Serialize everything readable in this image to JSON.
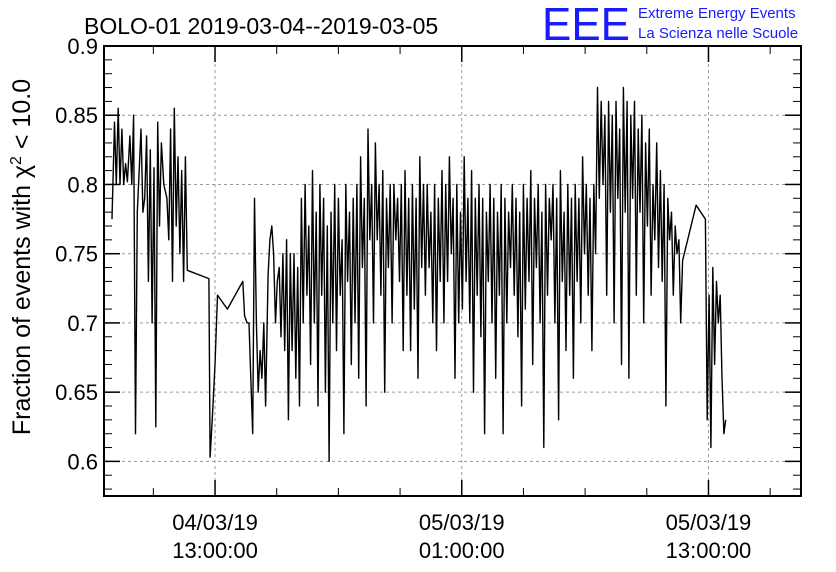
{
  "chart_data": {
    "type": "line",
    "title": "BOLO-01 2019-03-04--2019-03-05",
    "ylabel": "Fraction of events with χ² < 10.0",
    "xlabel": "",
    "ylim": [
      0.575,
      0.9
    ],
    "xlim": [
      -1.8,
      9.5
    ],
    "yticks": [
      0.6,
      0.65,
      0.7,
      0.75,
      0.8,
      0.85,
      0.9
    ],
    "ytick_labels": [
      "0.6",
      "0.65",
      "0.7",
      "0.75",
      "0.8",
      "0.85",
      "0.9"
    ],
    "xticks": [
      {
        "value": 0,
        "date": "04/03/19",
        "time": "13:00:00"
      },
      {
        "value": 4,
        "date": "05/03/19",
        "time": "01:00:00"
      },
      {
        "value": 8,
        "date": "05/03/19",
        "time": "13:00:00"
      }
    ],
    "grid": true,
    "line_color": "#000000",
    "series": [
      {
        "values": [
          [
            -1.67,
            0.775
          ],
          [
            -1.63,
            0.845
          ],
          [
            -1.6,
            0.8
          ],
          [
            -1.57,
            0.855
          ],
          [
            -1.54,
            0.8
          ],
          [
            -1.51,
            0.84
          ],
          [
            -1.48,
            0.8
          ],
          [
            -1.45,
            0.815
          ],
          [
            -1.42,
            0.802
          ],
          [
            -1.38,
            0.835
          ],
          [
            -1.35,
            0.8
          ],
          [
            -1.32,
            0.85
          ],
          [
            -1.29,
            0.62
          ],
          [
            -1.26,
            0.78
          ],
          [
            -1.23,
            0.81
          ],
          [
            -1.2,
            0.84
          ],
          [
            -1.17,
            0.78
          ],
          [
            -1.14,
            0.79
          ],
          [
            -1.11,
            0.835
          ],
          [
            -1.08,
            0.73
          ],
          [
            -1.05,
            0.825
          ],
          [
            -1.02,
            0.7
          ],
          [
            -0.99,
            0.812
          ],
          [
            -0.96,
            0.625
          ],
          [
            -0.93,
            0.845
          ],
          [
            -0.9,
            0.77
          ],
          [
            -0.87,
            0.83
          ],
          [
            -0.83,
            0.8
          ],
          [
            -0.78,
            0.79
          ],
          [
            -0.75,
            0.76
          ],
          [
            -0.72,
            0.84
          ],
          [
            -0.69,
            0.73
          ],
          [
            -0.66,
            0.855
          ],
          [
            -0.63,
            0.77
          ],
          [
            -0.6,
            0.82
          ],
          [
            -0.57,
            0.75
          ],
          [
            -0.54,
            0.81
          ],
          [
            -0.51,
            0.73
          ],
          [
            -0.48,
            0.82
          ],
          [
            -0.45,
            0.738
          ],
          [
            -0.1,
            0.732
          ],
          [
            -0.08,
            0.603
          ],
          [
            -0.04,
            0.635
          ],
          [
            0.0,
            0.67
          ],
          [
            0.04,
            0.72
          ],
          [
            0.2,
            0.71
          ],
          [
            0.45,
            0.73
          ],
          [
            0.48,
            0.705
          ],
          [
            0.52,
            0.7
          ],
          [
            0.55,
            0.7
          ],
          [
            0.58,
            0.66
          ],
          [
            0.61,
            0.62
          ],
          [
            0.64,
            0.79
          ],
          [
            0.67,
            0.7
          ],
          [
            0.7,
            0.65
          ],
          [
            0.73,
            0.68
          ],
          [
            0.76,
            0.66
          ],
          [
            0.79,
            0.7
          ],
          [
            0.82,
            0.64
          ],
          [
            0.86,
            0.735
          ],
          [
            0.89,
            0.76
          ],
          [
            0.92,
            0.77
          ],
          [
            0.95,
            0.75
          ],
          [
            0.98,
            0.7
          ],
          [
            1.01,
            0.73
          ],
          [
            1.04,
            0.74
          ],
          [
            1.07,
            0.69
          ],
          [
            1.1,
            0.75
          ],
          [
            1.13,
            0.68
          ],
          [
            1.16,
            0.76
          ],
          [
            1.19,
            0.63
          ],
          [
            1.22,
            0.75
          ],
          [
            1.25,
            0.68
          ],
          [
            1.28,
            0.75
          ],
          [
            1.31,
            0.66
          ],
          [
            1.34,
            0.74
          ],
          [
            1.37,
            0.64
          ],
          [
            1.4,
            0.79
          ],
          [
            1.43,
            0.7
          ],
          [
            1.46,
            0.8
          ],
          [
            1.49,
            0.72
          ],
          [
            1.52,
            0.77
          ],
          [
            1.55,
            0.67
          ],
          [
            1.58,
            0.81
          ],
          [
            1.61,
            0.7
          ],
          [
            1.64,
            0.78
          ],
          [
            1.67,
            0.64
          ],
          [
            1.7,
            0.8
          ],
          [
            1.73,
            0.72
          ],
          [
            1.76,
            0.79
          ],
          [
            1.79,
            0.65
          ],
          [
            1.82,
            0.77
          ],
          [
            1.85,
            0.6
          ],
          [
            1.88,
            0.78
          ],
          [
            1.91,
            0.7
          ],
          [
            1.94,
            0.8
          ],
          [
            1.97,
            0.68
          ],
          [
            2.0,
            0.79
          ],
          [
            2.03,
            0.72
          ],
          [
            2.06,
            0.76
          ],
          [
            2.09,
            0.62
          ],
          [
            2.12,
            0.8
          ],
          [
            2.15,
            0.73
          ],
          [
            2.18,
            0.78
          ],
          [
            2.21,
            0.67
          ],
          [
            2.24,
            0.79
          ],
          [
            2.27,
            0.7
          ],
          [
            2.3,
            0.8
          ],
          [
            2.33,
            0.66
          ],
          [
            2.36,
            0.82
          ],
          [
            2.39,
            0.74
          ],
          [
            2.42,
            0.79
          ],
          [
            2.45,
            0.64
          ],
          [
            2.48,
            0.84
          ],
          [
            2.51,
            0.76
          ],
          [
            2.54,
            0.8
          ],
          [
            2.57,
            0.7
          ],
          [
            2.6,
            0.83
          ],
          [
            2.63,
            0.76
          ],
          [
            2.66,
            0.8
          ],
          [
            2.69,
            0.72
          ],
          [
            2.72,
            0.81
          ],
          [
            2.75,
            0.65
          ],
          [
            2.78,
            0.79
          ],
          [
            2.81,
            0.74
          ],
          [
            2.84,
            0.8
          ],
          [
            2.87,
            0.7
          ],
          [
            2.9,
            0.8
          ],
          [
            2.93,
            0.76
          ],
          [
            2.96,
            0.79
          ],
          [
            2.99,
            0.73
          ],
          [
            3.02,
            0.8
          ],
          [
            3.05,
            0.68
          ],
          [
            3.08,
            0.81
          ],
          [
            3.11,
            0.72
          ],
          [
            3.14,
            0.79
          ],
          [
            3.17,
            0.68
          ],
          [
            3.2,
            0.8
          ],
          [
            3.23,
            0.71
          ],
          [
            3.26,
            0.79
          ],
          [
            3.29,
            0.66
          ],
          [
            3.32,
            0.82
          ],
          [
            3.35,
            0.74
          ],
          [
            3.38,
            0.8
          ],
          [
            3.41,
            0.72
          ],
          [
            3.44,
            0.8
          ],
          [
            3.47,
            0.74
          ],
          [
            3.5,
            0.78
          ],
          [
            3.53,
            0.7
          ],
          [
            3.56,
            0.8
          ],
          [
            3.59,
            0.68
          ],
          [
            3.62,
            0.79
          ],
          [
            3.65,
            0.73
          ],
          [
            3.68,
            0.81
          ],
          [
            3.71,
            0.7
          ],
          [
            3.74,
            0.8
          ],
          [
            3.77,
            0.73
          ],
          [
            3.8,
            0.82
          ],
          [
            3.83,
            0.75
          ],
          [
            3.86,
            0.79
          ],
          [
            3.89,
            0.66
          ],
          [
            3.92,
            0.8
          ],
          [
            3.95,
            0.7
          ],
          [
            3.98,
            0.78
          ],
          [
            4.01,
            0.71
          ],
          [
            4.04,
            0.82
          ],
          [
            4.07,
            0.73
          ],
          [
            4.1,
            0.79
          ],
          [
            4.13,
            0.7
          ],
          [
            4.16,
            0.81
          ],
          [
            4.19,
            0.65
          ],
          [
            4.22,
            0.79
          ],
          [
            4.25,
            0.72
          ],
          [
            4.28,
            0.8
          ],
          [
            4.31,
            0.69
          ],
          [
            4.34,
            0.79
          ],
          [
            4.37,
            0.62
          ],
          [
            4.4,
            0.78
          ],
          [
            4.43,
            0.73
          ],
          [
            4.46,
            0.8
          ],
          [
            4.49,
            0.7
          ],
          [
            4.52,
            0.79
          ],
          [
            4.55,
            0.66
          ],
          [
            4.58,
            0.78
          ],
          [
            4.61,
            0.72
          ],
          [
            4.64,
            0.8
          ],
          [
            4.67,
            0.62
          ],
          [
            4.7,
            0.79
          ],
          [
            4.73,
            0.7
          ],
          [
            4.76,
            0.78
          ],
          [
            4.79,
            0.74
          ],
          [
            4.82,
            0.8
          ],
          [
            4.85,
            0.72
          ],
          [
            4.88,
            0.79
          ],
          [
            4.91,
            0.69
          ],
          [
            4.94,
            0.78
          ],
          [
            4.97,
            0.64
          ],
          [
            5.0,
            0.8
          ],
          [
            5.03,
            0.71
          ],
          [
            5.06,
            0.79
          ],
          [
            5.09,
            0.73
          ],
          [
            5.12,
            0.81
          ],
          [
            5.15,
            0.67
          ],
          [
            5.18,
            0.79
          ],
          [
            5.21,
            0.74
          ],
          [
            5.24,
            0.8
          ],
          [
            5.27,
            0.7
          ],
          [
            5.3,
            0.78
          ],
          [
            5.33,
            0.61
          ],
          [
            5.36,
            0.8
          ],
          [
            5.39,
            0.72
          ],
          [
            5.42,
            0.79
          ],
          [
            5.45,
            0.76
          ],
          [
            5.48,
            0.8
          ],
          [
            5.51,
            0.7
          ],
          [
            5.54,
            0.79
          ],
          [
            5.57,
            0.63
          ],
          [
            5.6,
            0.81
          ],
          [
            5.63,
            0.73
          ],
          [
            5.66,
            0.78
          ],
          [
            5.69,
            0.68
          ],
          [
            5.72,
            0.8
          ],
          [
            5.75,
            0.72
          ],
          [
            5.78,
            0.79
          ],
          [
            5.81,
            0.66
          ],
          [
            5.84,
            0.8
          ],
          [
            5.87,
            0.73
          ],
          [
            5.9,
            0.79
          ],
          [
            5.93,
            0.7
          ],
          [
            5.96,
            0.82
          ],
          [
            5.99,
            0.75
          ],
          [
            6.02,
            0.8
          ],
          [
            6.05,
            0.72
          ],
          [
            6.08,
            0.79
          ],
          [
            6.11,
            0.68
          ],
          [
            6.14,
            0.8
          ],
          [
            6.17,
            0.75
          ],
          [
            6.2,
            0.87
          ],
          [
            6.23,
            0.79
          ],
          [
            6.26,
            0.86
          ],
          [
            6.29,
            0.8
          ],
          [
            6.32,
            0.85
          ],
          [
            6.35,
            0.72
          ],
          [
            6.38,
            0.86
          ],
          [
            6.41,
            0.78
          ],
          [
            6.44,
            0.85
          ],
          [
            6.47,
            0.7
          ],
          [
            6.5,
            0.86
          ],
          [
            6.53,
            0.79
          ],
          [
            6.56,
            0.84
          ],
          [
            6.59,
            0.67
          ],
          [
            6.62,
            0.87
          ],
          [
            6.65,
            0.78
          ],
          [
            6.68,
            0.86
          ],
          [
            6.71,
            0.66
          ],
          [
            6.74,
            0.85
          ],
          [
            6.77,
            0.79
          ],
          [
            6.8,
            0.86
          ],
          [
            6.83,
            0.72
          ],
          [
            6.86,
            0.84
          ],
          [
            6.89,
            0.78
          ],
          [
            6.92,
            0.85
          ],
          [
            6.95,
            0.7
          ],
          [
            6.98,
            0.83
          ],
          [
            7.01,
            0.77
          ],
          [
            7.04,
            0.84
          ],
          [
            7.07,
            0.72
          ],
          [
            7.1,
            0.8
          ],
          [
            7.13,
            0.76
          ],
          [
            7.16,
            0.83
          ],
          [
            7.19,
            0.74
          ],
          [
            7.22,
            0.81
          ],
          [
            7.25,
            0.73
          ],
          [
            7.28,
            0.8
          ],
          [
            7.31,
            0.64
          ],
          [
            7.34,
            0.79
          ],
          [
            7.37,
            0.76
          ],
          [
            7.4,
            0.78
          ],
          [
            7.43,
            0.72
          ],
          [
            7.46,
            0.77
          ],
          [
            7.49,
            0.75
          ],
          [
            7.52,
            0.76
          ],
          [
            7.55,
            0.7
          ],
          [
            7.58,
            0.745
          ],
          [
            7.8,
            0.785
          ],
          [
            7.95,
            0.775
          ],
          [
            7.98,
            0.63
          ],
          [
            8.01,
            0.72
          ],
          [
            8.04,
            0.61
          ],
          [
            8.07,
            0.74
          ],
          [
            8.1,
            0.67
          ],
          [
            8.13,
            0.73
          ],
          [
            8.16,
            0.7
          ],
          [
            8.19,
            0.72
          ],
          [
            8.22,
            0.66
          ],
          [
            8.25,
            0.62
          ],
          [
            8.28,
            0.63
          ]
        ]
      }
    ]
  },
  "logo": {
    "mark": "EEE",
    "line1": "Extreme Energy Events",
    "line2": "La Scienza nelle Scuole",
    "color": "#1a1aff"
  }
}
